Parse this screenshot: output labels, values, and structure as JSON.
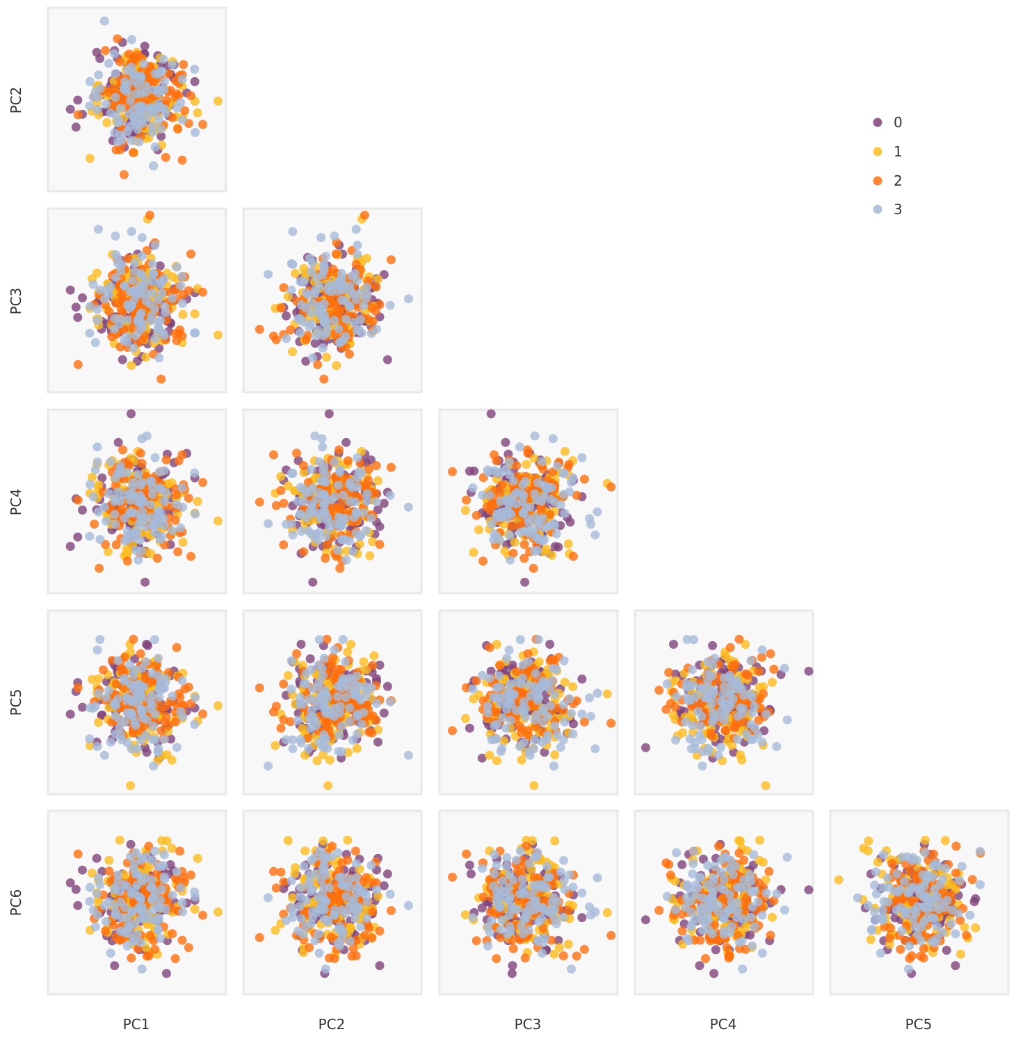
{
  "chart_data": {
    "type": "scatter",
    "title": "",
    "layout": "pairplot-lower-triangle",
    "variables": [
      "PC1",
      "PC2",
      "PC3",
      "PC4",
      "PC5",
      "PC6"
    ],
    "x_axis_labels": [
      "PC1",
      "PC2",
      "PC3",
      "PC4",
      "PC5"
    ],
    "y_axis_labels": [
      "PC2",
      "PC3",
      "PC4",
      "PC5",
      "PC6"
    ],
    "ticks_shown": false,
    "grid": false,
    "legend": {
      "placement": "top-right",
      "entries": [
        {
          "label": "0",
          "color": "#80447a"
        },
        {
          "label": "1",
          "color": "#fbbc1f"
        },
        {
          "label": "2",
          "color": "#fd6f0e"
        },
        {
          "label": "3",
          "color": "#a6bad8"
        }
      ]
    },
    "series": [
      {
        "name": "0",
        "n_points": 100,
        "mean": [
          0,
          0,
          0,
          0,
          0,
          0
        ],
        "sd": [
          1,
          1,
          1,
          1,
          1,
          1
        ]
      },
      {
        "name": "1",
        "n_points": 100,
        "mean": [
          0,
          0,
          0,
          0,
          0,
          0
        ],
        "sd": [
          1,
          1,
          1,
          1,
          1,
          1
        ]
      },
      {
        "name": "2",
        "n_points": 100,
        "mean": [
          0,
          0,
          0,
          0,
          0,
          0
        ],
        "sd": [
          1,
          1,
          1,
          1,
          1,
          1
        ]
      },
      {
        "name": "3",
        "n_points": 100,
        "mean": [
          0,
          0,
          0,
          0,
          0,
          0
        ],
        "sd": [
          1,
          1,
          1,
          1,
          1,
          1
        ]
      }
    ],
    "axis_range": [
      -3.5,
      3.5
    ],
    "colors": {
      "panel_bg": "#f8f8f8",
      "panel_border": "#e8e8e8",
      "text": "#333333"
    }
  }
}
